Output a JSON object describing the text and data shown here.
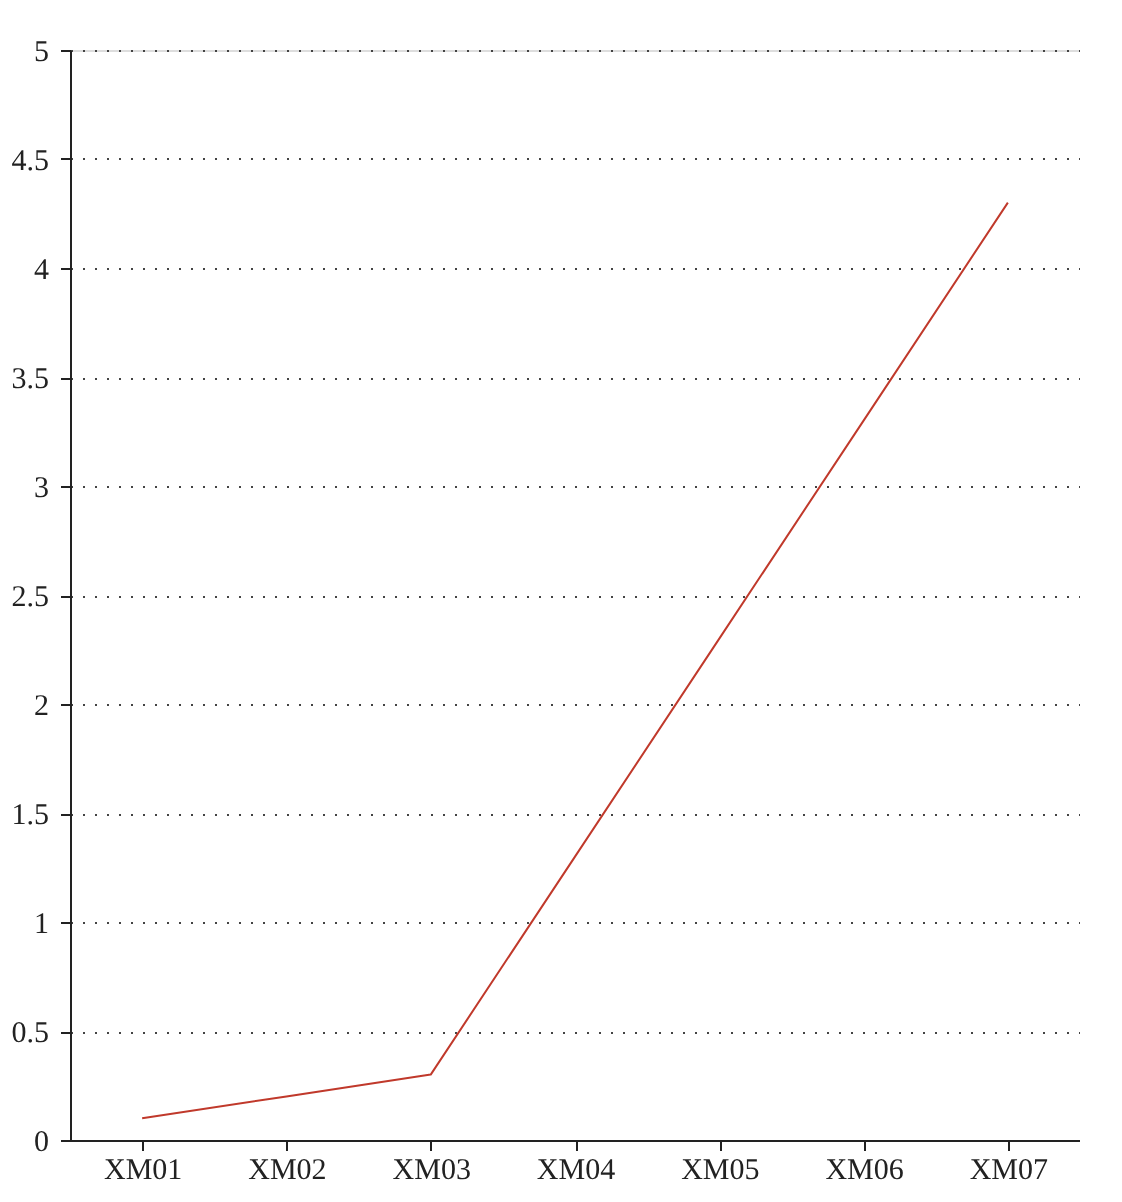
{
  "chart_data": {
    "type": "line",
    "categories": [
      "XM01",
      "XM02",
      "XM03",
      "XM04",
      "XM05",
      "XM06",
      "XM07"
    ],
    "series": [
      {
        "color": "#c0392b",
        "values": [
          0.1,
          0.2,
          0.3,
          1.3,
          2.3,
          3.3,
          4.3
        ]
      }
    ],
    "ylim": [
      0,
      5
    ],
    "yticks": [
      0,
      0.5,
      1,
      1.5,
      2,
      2.5,
      3,
      3.5,
      4,
      4.5,
      5
    ],
    "grid": "y",
    "marker": "none",
    "line_style": "solid"
  }
}
